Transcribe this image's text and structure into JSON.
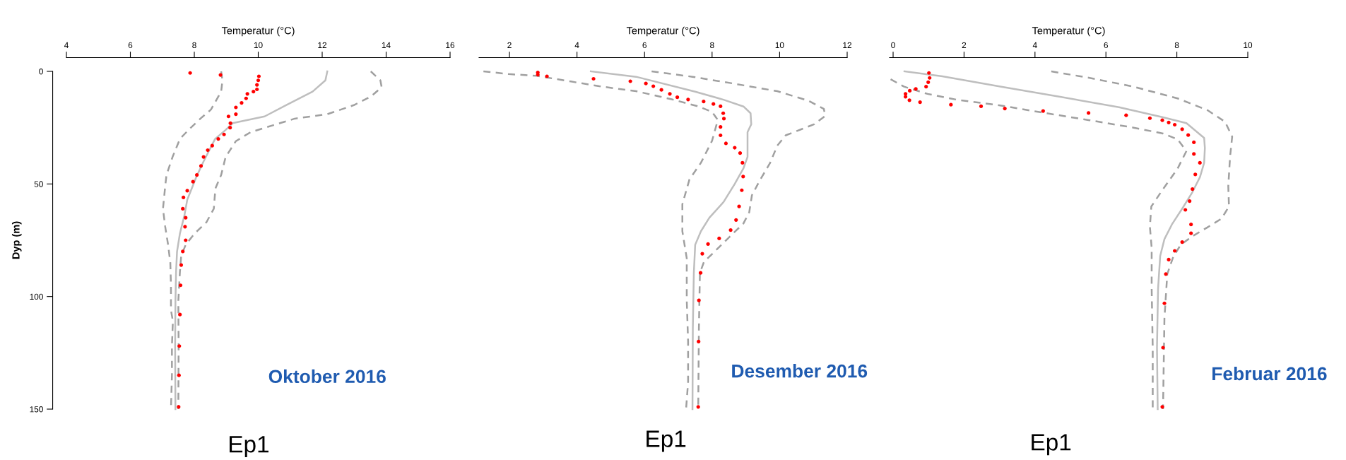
{
  "chart_data": [
    {
      "type": "scatter",
      "xlabel": "Temperatur (°C)",
      "ylabel": "Dyp (m)",
      "xlim": [
        4,
        16
      ],
      "xticks": [
        4,
        6,
        8,
        10,
        12,
        14,
        16
      ],
      "ylim": [
        150,
        0
      ],
      "yticks": [
        0,
        50,
        100,
        150
      ],
      "grid": false,
      "legend": false,
      "annotations": [
        "Oktober 2016",
        "Ep1"
      ],
      "series": [
        {
          "type": "line",
          "color": "#bebebe",
          "line_style": "solid",
          "x": [
            12.16,
            12.1,
            11.7,
            10.87,
            10.2,
            9.2,
            8.98,
            8.65,
            8.47,
            8.29,
            8.06,
            7.92,
            7.78,
            7.69,
            7.55,
            7.46,
            7.43,
            7.41,
            7.4,
            7.41
          ],
          "values": [
            0,
            4,
            9,
            15,
            20,
            23,
            26,
            30,
            35,
            40,
            47,
            52,
            57,
            64,
            72,
            80,
            89,
            102,
            122,
            150
          ]
        },
        {
          "type": "line",
          "color": "#a0a0a0",
          "line_style": "dashed",
          "x": [
            8.84,
            8.88,
            8.84,
            8.52,
            8.19,
            7.82,
            7.55,
            7.32,
            7.13,
            7.09,
            7.02,
            7.09,
            7.18,
            7.25,
            7.27,
            7.27,
            7.33,
            7.3,
            7.3,
            7.27
          ],
          "values": [
            0,
            4,
            9,
            17,
            21,
            26,
            30,
            38,
            46,
            51,
            61,
            69,
            77,
            85,
            95,
            106,
            111,
            122,
            135,
            150
          ]
        },
        {
          "type": "line",
          "color": "#a0a0a0",
          "line_style": "dashed",
          "x": [
            13.52,
            13.82,
            13.86,
            13.54,
            12.99,
            12.16,
            11.14,
            10.68,
            9.76,
            9.3,
            8.98,
            8.84,
            8.66,
            8.61,
            8.38,
            8.01,
            7.73,
            7.59,
            7.55,
            7.5,
            7.51,
            7.5
          ],
          "values": [
            0,
            4,
            7,
            11,
            15,
            19,
            21,
            23,
            27,
            31,
            38,
            46,
            52,
            61,
            67,
            72,
            77,
            82,
            89,
            102,
            122,
            150
          ]
        },
        {
          "type": "scatter",
          "marker": "circle",
          "color": "#ff0000",
          "x": [
            7.87,
            8.82,
            10.02,
            10.0,
            9.96,
            9.96,
            9.85,
            9.66,
            9.62,
            9.48,
            9.3,
            9.3,
            9.07,
            9.13,
            9.12,
            8.93,
            8.75,
            8.56,
            8.42,
            8.29,
            8.21,
            8.08,
            7.96,
            7.78,
            7.66,
            7.64,
            7.73,
            7.71,
            7.73,
            7.64,
            7.59,
            7.57,
            7.55,
            7.53,
            7.52,
            7.51
          ],
          "values": [
            0.7,
            1.6,
            2.2,
            4,
            6,
            8,
            9,
            10,
            12,
            14,
            16,
            19,
            20,
            23,
            25,
            28,
            30,
            33,
            35,
            38,
            42,
            46,
            49,
            53,
            56,
            61,
            65,
            69,
            75,
            80,
            86,
            95,
            108,
            122,
            135,
            149
          ]
        }
      ]
    },
    {
      "type": "scatter",
      "xlabel": "Temperatur (°C)",
      "xlim": [
        1.1,
        12
      ],
      "xticks": [
        2,
        4,
        6,
        8,
        10,
        12
      ],
      "ylim": [
        150,
        0
      ],
      "tick_labels": "x",
      "grid": false,
      "legend": false,
      "annotations": [
        "Desember 2016",
        "Ep1"
      ],
      "series": [
        {
          "type": "line",
          "color": "#bebebe",
          "line_style": "solid",
          "x": [
            4.41,
            5.75,
            7.5,
            8.34,
            8.93,
            9.14,
            9.16,
            9.05,
            9.05,
            8.93,
            8.67,
            8.34,
            7.92,
            7.67,
            7.5,
            7.46,
            7.43,
            7.42
          ],
          "values": [
            0,
            2.4,
            9,
            12.6,
            15.6,
            18.6,
            23.5,
            27,
            38,
            43,
            50,
            58,
            65,
            71,
            77,
            89.5,
            114,
            150
          ]
        },
        {
          "type": "line",
          "color": "#a0a0a0",
          "line_style": "dashed",
          "x": [
            1.23,
            1.98,
            2.82,
            3.82,
            4.66,
            5.75,
            6.83,
            7.58,
            8.0,
            8.17,
            8.0,
            7.67,
            7.33,
            7.12,
            7.12,
            7.25,
            7.25,
            7.29,
            7.29,
            7.23
          ],
          "values": [
            0,
            1.2,
            2,
            4.5,
            6.6,
            8.8,
            12.5,
            15.5,
            18,
            21.6,
            30.8,
            40.6,
            48,
            59,
            71,
            83,
            101.7,
            120,
            138,
            150
          ]
        },
        {
          "type": "line",
          "color": "#a0a0a0",
          "line_style": "dashed",
          "x": [
            6.21,
            7.42,
            8.67,
            9.93,
            10.85,
            11.31,
            11.35,
            11.02,
            10.18,
            9.93,
            9.72,
            9.43,
            9.18,
            9.1,
            8.93,
            8.43,
            8.01,
            7.76,
            7.64,
            7.61,
            7.59
          ],
          "values": [
            0,
            2.4,
            5.5,
            8.8,
            13,
            16.7,
            19.8,
            23.5,
            28.4,
            33,
            40.6,
            48,
            55,
            62.6,
            67.5,
            74.8,
            81,
            84.6,
            89.5,
            114,
            150
          ]
        },
        {
          "type": "scatter",
          "marker": "circle",
          "color": "#ff0000",
          "x": [
            2.84,
            2.84,
            3.11,
            4.49,
            5.58,
            6.04,
            6.26,
            6.5,
            6.75,
            6.97,
            7.29,
            7.75,
            8.04,
            8.25,
            8.33,
            8.35,
            8.25,
            8.25,
            8.41,
            8.67,
            8.83,
            8.9,
            8.92,
            8.88,
            8.8,
            8.71,
            8.55,
            8.21,
            7.88,
            7.71,
            7.66,
            7.61,
            7.6,
            7.59
          ],
          "values": [
            0.5,
            1.5,
            2.2,
            3.3,
            4.4,
            5.4,
            6.6,
            8.2,
            10,
            11.5,
            12.5,
            13.4,
            14.5,
            15.5,
            18.6,
            21,
            24.7,
            28.4,
            32,
            33.9,
            36.3,
            40.6,
            46.7,
            52.8,
            60,
            66,
            70.5,
            74.2,
            76.7,
            81,
            89.5,
            101.7,
            120,
            149
          ]
        }
      ]
    },
    {
      "type": "scatter",
      "xlabel": "Temperatur (°C)",
      "xlim": [
        -0.1,
        10
      ],
      "xticks": [
        0,
        2,
        4,
        6,
        8,
        10
      ],
      "ylim": [
        150,
        0
      ],
      "tick_labels": "x",
      "grid": false,
      "legend": false,
      "annotations": [
        "Februar 2016",
        "Ep1"
      ],
      "series": [
        {
          "type": "line",
          "color": "#bebebe",
          "line_style": "solid",
          "x": [
            0.32,
            1.39,
            3.05,
            4.71,
            6.37,
            7.61,
            8.27,
            8.77,
            8.79,
            8.77,
            8.65,
            8.44,
            8.19,
            7.86,
            7.65,
            7.53,
            7.47,
            7.44,
            7.46
          ],
          "values": [
            0,
            2.2,
            6.8,
            11.3,
            15.9,
            20.4,
            23,
            29.6,
            34,
            40.6,
            47,
            53.6,
            60,
            68,
            74.5,
            82,
            96.6,
            122.7,
            150
          ]
        },
        {
          "type": "line",
          "color": "#a0a0a0",
          "line_style": "dashed",
          "x": [
            -0.07,
            0.31,
            0.97,
            1.8,
            3.05,
            4.29,
            5.54,
            6.78,
            7.61,
            8.02,
            8.27,
            8.02,
            7.61,
            7.28,
            7.24,
            7.29,
            7.29,
            7.32,
            7.32
          ],
          "values": [
            3.5,
            6.8,
            10,
            12.6,
            15.2,
            18.5,
            21.7,
            25,
            27.6,
            30.2,
            35.4,
            43.2,
            52.3,
            60,
            69,
            78.4,
            96.6,
            122.7,
            150
          ]
        },
        {
          "type": "line",
          "color": "#a0a0a0",
          "line_style": "dashed",
          "x": [
            4.46,
            5.54,
            6.78,
            8.02,
            8.86,
            9.36,
            9.56,
            9.5,
            9.45,
            9.47,
            9.26,
            8.86,
            8.44,
            8.11,
            7.9,
            7.73,
            7.65,
            7.61
          ],
          "values": [
            0,
            2.9,
            6.8,
            12,
            17.2,
            22.4,
            29,
            38,
            51,
            60,
            65.4,
            69.3,
            73.2,
            77,
            82.3,
            90,
            109.6,
            150
          ]
        },
        {
          "type": "scatter",
          "marker": "circle",
          "color": "#ff0000",
          "x": [
            1.01,
            1.03,
            0.99,
            0.93,
            0.64,
            0.47,
            0.35,
            0.35,
            0.46,
            0.76,
            1.63,
            2.48,
            3.15,
            4.23,
            5.51,
            6.57,
            7.24,
            7.59,
            7.77,
            7.94,
            8.15,
            8.32,
            8.48,
            8.48,
            8.65,
            8.52,
            8.44,
            8.36,
            8.24,
            8.4,
            8.4,
            8.15,
            7.94,
            7.77,
            7.69,
            7.65,
            7.61,
            7.59
          ],
          "values": [
            0.7,
            2.9,
            4.8,
            6.8,
            7.8,
            8.6,
            10,
            11.3,
            12.8,
            13.7,
            14.8,
            15.5,
            16.5,
            17.6,
            18.5,
            19.5,
            20.8,
            21.7,
            22.7,
            23.7,
            25.7,
            28.3,
            31.5,
            36.7,
            40.6,
            45.8,
            52.3,
            57.6,
            61.5,
            68,
            71.9,
            75.8,
            79.7,
            83.6,
            90,
            103,
            122.7,
            149
          ]
        }
      ]
    }
  ]
}
